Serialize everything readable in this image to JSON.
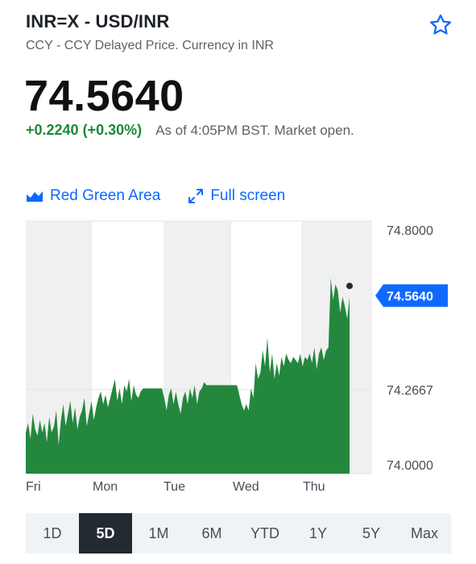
{
  "header": {
    "title": "INR=X - USD/INR",
    "subtitle": "CCY - CCY Delayed Price. Currency in INR"
  },
  "quote": {
    "price": "74.5640",
    "change": "+0.2240 (+0.30%)",
    "as_of": "As of 4:05PM BST. Market open."
  },
  "controls": {
    "chart_type_label": "Red Green Area",
    "fullscreen_label": "Full screen"
  },
  "colors": {
    "area": "#23883d",
    "positive": "#1a8a35",
    "link": "#0f69ff",
    "price_tag": "#0f69ff"
  },
  "chart_data": {
    "type": "area",
    "ylim": [
      74.0,
      74.8
    ],
    "y_ticks": [
      "74.8000",
      "74.2667",
      "74.0000"
    ],
    "x_labels": [
      "Fri",
      "Mon",
      "Tue",
      "Wed",
      "Thu"
    ],
    "current_label": "74.5640",
    "grid": true,
    "series": [
      {
        "values": [
          74.13,
          74.16,
          74.11,
          74.19,
          74.14,
          74.12,
          74.17,
          74.13,
          74.16,
          74.1,
          74.18,
          74.13,
          74.15,
          74.2,
          74.09,
          74.17,
          74.22,
          74.15,
          74.19,
          74.23,
          74.16,
          74.21,
          74.14,
          74.18,
          74.2,
          74.24,
          74.15,
          74.19,
          74.23,
          74.17,
          74.21,
          74.24,
          74.26,
          74.22,
          74.25,
          74.21,
          74.24,
          74.27,
          74.3,
          74.23,
          74.27,
          74.22,
          74.28,
          74.26,
          74.3,
          74.23,
          74.28,
          74.25,
          74.24,
          74.26,
          74.27,
          74.27,
          74.27,
          74.27,
          74.27,
          74.27,
          74.27,
          74.27,
          74.27,
          74.24,
          74.2,
          74.25,
          74.27,
          74.22,
          74.26,
          74.22,
          74.19,
          74.24,
          74.26,
          74.22,
          74.27,
          74.24,
          74.28,
          74.22,
          74.26,
          74.27,
          74.29,
          74.28,
          74.28,
          74.28,
          74.28,
          74.28,
          74.28,
          74.28,
          74.28,
          74.28,
          74.28,
          74.28,
          74.28,
          74.28,
          74.28,
          74.25,
          74.22,
          74.2,
          74.22,
          74.2,
          74.27,
          74.24,
          74.35,
          74.3,
          74.32,
          74.39,
          74.34,
          74.43,
          74.32,
          74.38,
          74.3,
          74.35,
          74.31,
          74.37,
          74.34,
          74.38,
          74.36,
          74.35,
          74.37,
          74.36,
          74.35,
          74.38,
          74.34,
          74.37,
          74.36,
          74.38,
          74.35,
          74.4,
          74.33,
          74.38,
          74.4,
          74.36,
          74.39,
          74.4,
          74.62,
          74.55,
          74.6,
          74.58,
          74.51,
          74.56,
          74.53,
          74.49,
          74.56
        ]
      }
    ]
  },
  "ranges": [
    {
      "label": "1D",
      "active": false
    },
    {
      "label": "5D",
      "active": true
    },
    {
      "label": "1M",
      "active": false
    },
    {
      "label": "6M",
      "active": false
    },
    {
      "label": "YTD",
      "active": false
    },
    {
      "label": "1Y",
      "active": false
    },
    {
      "label": "5Y",
      "active": false
    },
    {
      "label": "Max",
      "active": false
    }
  ]
}
